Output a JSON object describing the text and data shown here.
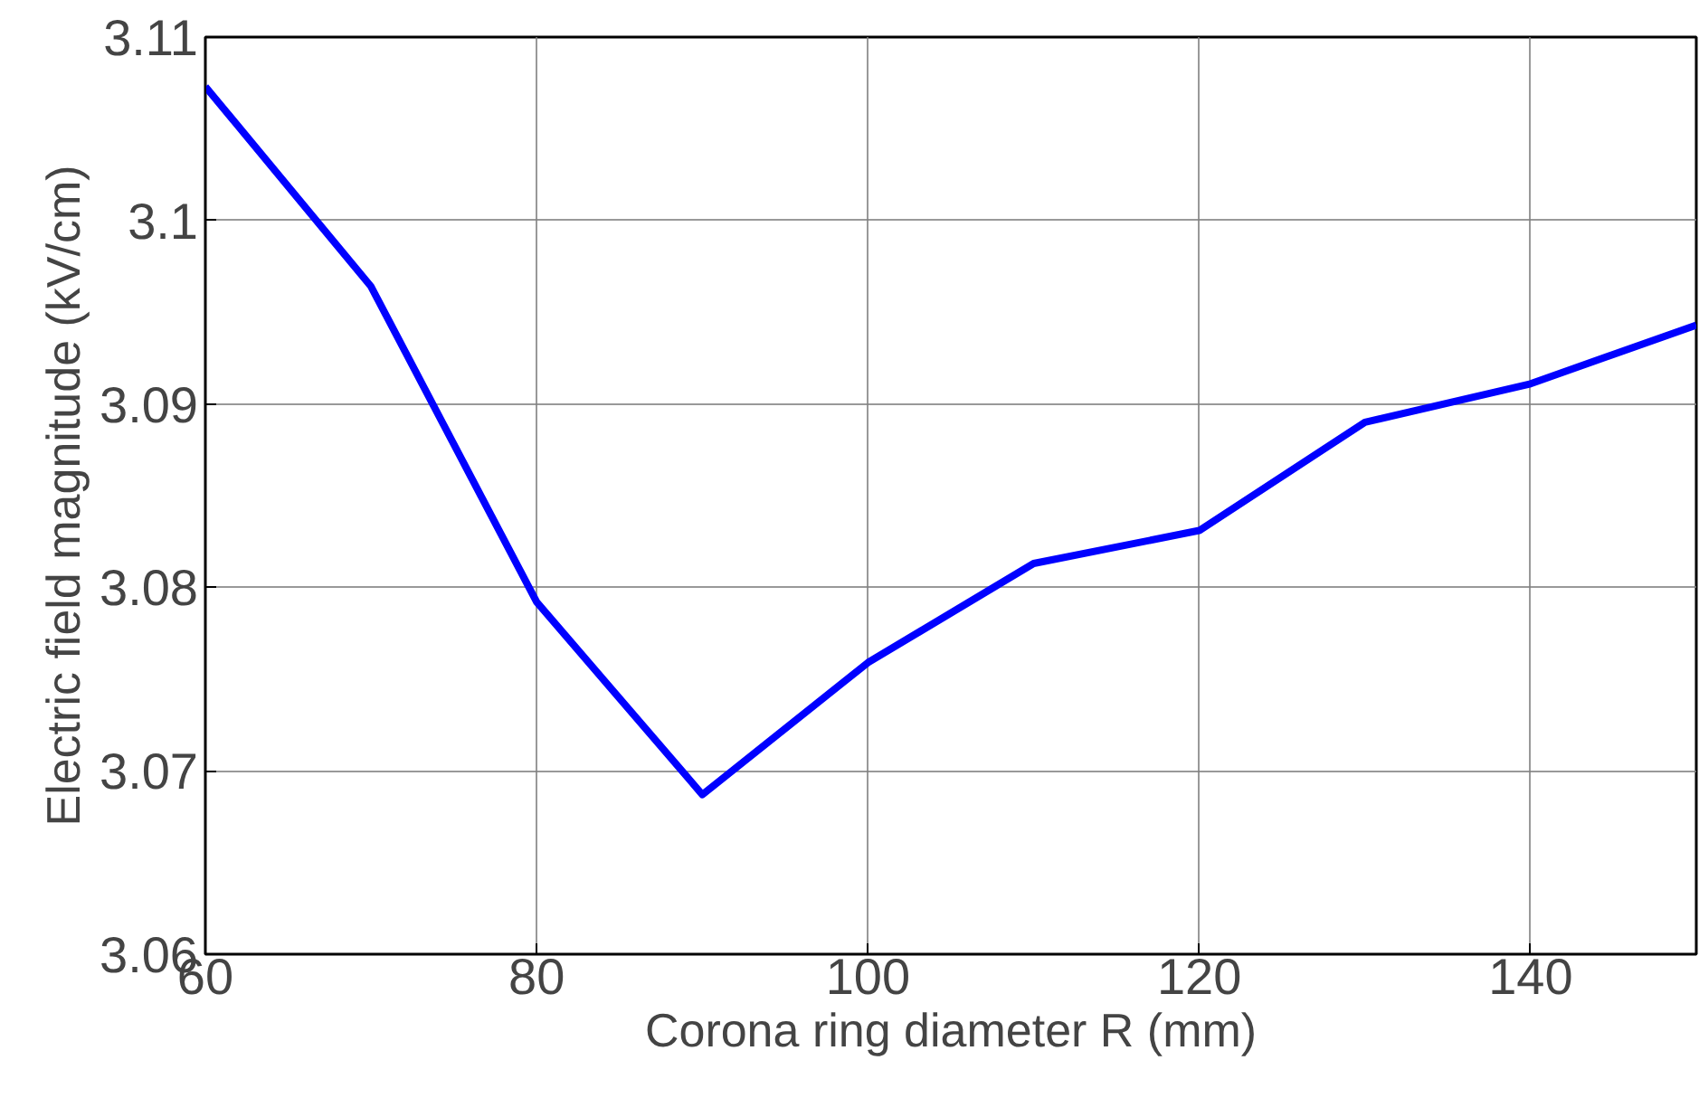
{
  "chart_data": {
    "type": "line",
    "xlabel": "Corona ring diameter R (mm)",
    "ylabel": "Electric field magnitude (kV/cm)",
    "x": [
      60,
      70,
      80,
      90,
      100,
      110,
      120,
      130,
      140,
      150
    ],
    "series": [
      {
        "color": "#0000ff",
        "values": [
          3.1073,
          3.0964,
          3.0792,
          3.0687,
          3.0759,
          3.0813,
          3.0831,
          3.089,
          3.0911,
          3.0943
        ]
      }
    ],
    "xlim": [
      60,
      150
    ],
    "ylim": [
      3.06,
      3.11
    ],
    "xticks": [
      60,
      80,
      100,
      120,
      140
    ],
    "yticks": [
      3.06,
      3.07,
      3.08,
      3.09,
      3.1,
      3.11
    ],
    "grid": true,
    "marker": "none",
    "line_style": "solid"
  }
}
